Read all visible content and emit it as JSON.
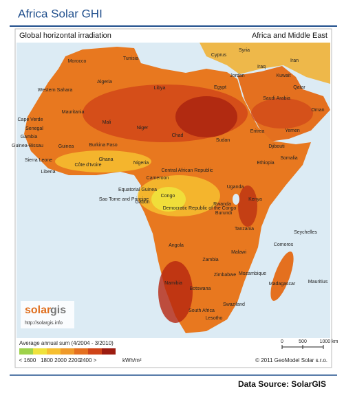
{
  "header": {
    "title": "Africa Solar GHI"
  },
  "map": {
    "subtitle": "Global horizontal irradiation",
    "region": "Africa and Middle East",
    "labels": [
      "Morocco",
      "Tunisia",
      "Algeria",
      "Libya",
      "Egypt",
      "Western Sahara",
      "Mauritania",
      "Mali",
      "Niger",
      "Chad",
      "Sudan",
      "Eritrea",
      "Djibouti",
      "Ethiopia",
      "Somalia",
      "Cape Verde",
      "Senegal",
      "Gambia",
      "Guinea-Bissau",
      "Guinea",
      "Burkina Faso",
      "Sierra Leone",
      "Liberia",
      "Côte d'Ivoire",
      "Ghana",
      "Nigeria",
      "Central African Republic",
      "Cameroon",
      "Equatorial Guinea",
      "Sao Tome and Principe",
      "Gabon",
      "Congo",
      "Democratic Republic of the Congo",
      "Uganda",
      "Kenya",
      "Rwanda",
      "Burundi",
      "Tanzania",
      "Seychelles",
      "Comoros",
      "Angola",
      "Zambia",
      "Malawi",
      "Zimbabwe",
      "Mozambique",
      "Madagascar",
      "Mauritius",
      "Namibia",
      "Botswana",
      "South Africa",
      "Swaziland",
      "Lesotho",
      "Saudi Arabia",
      "Yemen",
      "Oman",
      "Iraq",
      "Iran",
      "Syria",
      "Cyprus",
      "Jordan",
      "Kuwait",
      "Qatar"
    ]
  },
  "legend": {
    "caption": "Average annual sum (4/2004 - 3/2010)",
    "colors": [
      "#9ed24a",
      "#efe23c",
      "#f6bf30",
      "#ef9a2a",
      "#e4701f",
      "#cf4418",
      "#9c1c10"
    ],
    "labels": [
      "< 1600",
      "1800",
      "2000",
      "2200",
      "2400 >"
    ],
    "unit": "kWh/m²"
  },
  "scale": {
    "ticks": [
      "0",
      "500",
      "1000 km"
    ]
  },
  "logo": {
    "solar": "solar",
    "gis": "gis",
    "url": "http://solargis.info"
  },
  "copyright": "© 2011 GeoModel Solar s.r.o.",
  "footer": {
    "source": "Data Source: SolarGIS"
  }
}
